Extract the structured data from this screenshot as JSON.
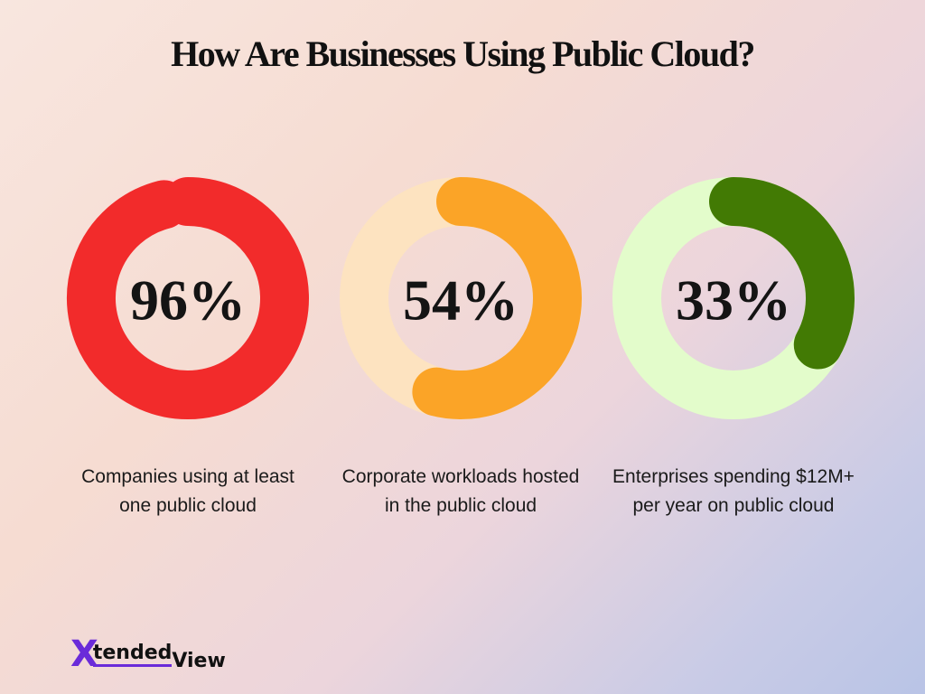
{
  "title": "How Are Businesses Using Public Cloud?",
  "logo": {
    "initial": "X",
    "word1": "tended",
    "word2": "View"
  },
  "chart_data": [
    {
      "type": "donut",
      "title": "Companies using at least one public cloud",
      "values": [
        96
      ],
      "value_labels": [
        "96%"
      ],
      "color": "#f22b2b",
      "track_color": "#ffd8d8"
    },
    {
      "type": "donut",
      "title": "Corporate workloads hosted in the public cloud",
      "values": [
        54
      ],
      "value_labels": [
        "54%"
      ],
      "color": "#fba427",
      "track_color": "#fde3c0"
    },
    {
      "type": "donut",
      "title": "Enterprises spending $12M+ per year on public cloud",
      "values": [
        33
      ],
      "value_labels": [
        "33%"
      ],
      "color": "#427a04",
      "track_color": "#e3fccb"
    }
  ]
}
